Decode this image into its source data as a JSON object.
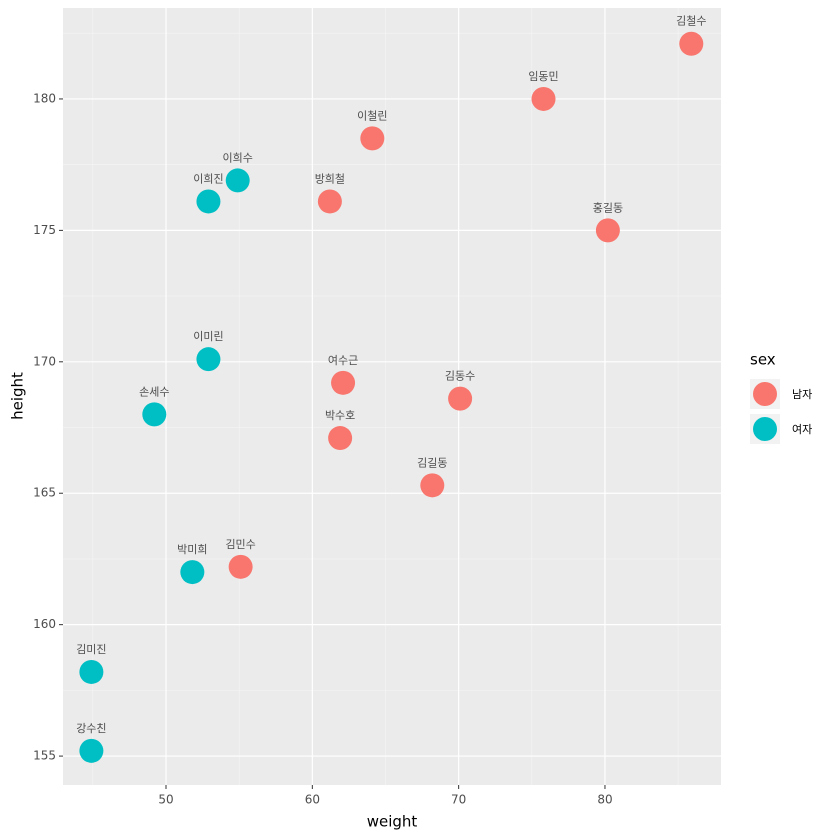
{
  "chart_data": {
    "type": "scatter",
    "x_label": "weight",
    "y_label": "height",
    "legend_title": "sex",
    "legend": "right",
    "grid": true,
    "xlim": [
      42.96,
      87.93
    ],
    "xticks": [
      50,
      60,
      70,
      80
    ],
    "xminor": [
      45,
      55,
      65,
      75,
      85
    ],
    "ylim": [
      153.9,
      183.46
    ],
    "yticks": [
      155,
      160,
      165,
      170,
      175,
      180
    ],
    "yminor": [
      157.5,
      162.5,
      167.5,
      172.5,
      177.5,
      182.5
    ],
    "series": [
      {
        "name": "남자",
        "color": "#F8766D",
        "labels": [
          "김철수",
          "임동민",
          "이철린",
          "방희철",
          "홍길동",
          "여수근",
          "김동수",
          "박수호",
          "김길동",
          "김민수"
        ],
        "x": [
          85.9,
          75.8,
          64.1,
          61.2,
          80.2,
          62.1,
          70.1,
          61.9,
          68.2,
          55.1
        ],
        "values": [
          182.1,
          180.0,
          178.5,
          176.1,
          175.0,
          169.2,
          168.6,
          167.1,
          165.3,
          162.2
        ]
      },
      {
        "name": "여자",
        "color": "#00BFC4",
        "labels": [
          "이희수",
          "이희진",
          "이미린",
          "손세수",
          "박미희",
          "김미진",
          "강수친"
        ],
        "x": [
          54.9,
          52.9,
          52.9,
          49.2,
          51.8,
          44.9,
          44.9
        ],
        "values": [
          176.9,
          176.1,
          170.1,
          168.0,
          162.0,
          158.2,
          155.2
        ]
      }
    ]
  }
}
